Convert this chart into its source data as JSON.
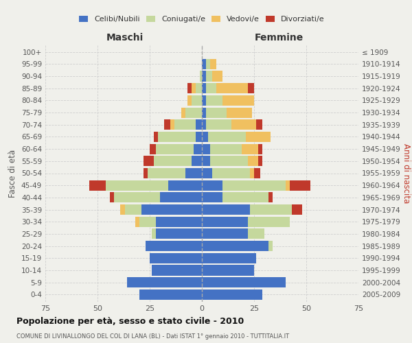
{
  "age_groups": [
    "0-4",
    "5-9",
    "10-14",
    "15-19",
    "20-24",
    "25-29",
    "30-34",
    "35-39",
    "40-44",
    "45-49",
    "50-54",
    "55-59",
    "60-64",
    "65-69",
    "70-74",
    "75-79",
    "80-84",
    "85-89",
    "90-94",
    "95-99",
    "100+"
  ],
  "birth_years": [
    "2005-2009",
    "2000-2004",
    "1995-1999",
    "1990-1994",
    "1985-1989",
    "1980-1984",
    "1975-1979",
    "1970-1974",
    "1965-1969",
    "1960-1964",
    "1955-1959",
    "1950-1954",
    "1945-1949",
    "1940-1944",
    "1935-1939",
    "1930-1934",
    "1925-1929",
    "1920-1924",
    "1915-1919",
    "1910-1914",
    "≤ 1909"
  ],
  "males": {
    "celibi": [
      30,
      36,
      24,
      25,
      27,
      22,
      22,
      29,
      20,
      16,
      8,
      5,
      4,
      3,
      3,
      0,
      0,
      0,
      0,
      0,
      0
    ],
    "coniugati": [
      0,
      0,
      0,
      0,
      0,
      2,
      8,
      8,
      22,
      30,
      18,
      18,
      18,
      18,
      10,
      8,
      5,
      3,
      1,
      0,
      0
    ],
    "vedovi": [
      0,
      0,
      0,
      0,
      0,
      0,
      2,
      2,
      0,
      0,
      0,
      0,
      0,
      0,
      2,
      2,
      2,
      2,
      0,
      0,
      0
    ],
    "divorziati": [
      0,
      0,
      0,
      0,
      0,
      0,
      0,
      0,
      2,
      8,
      2,
      5,
      3,
      2,
      3,
      0,
      0,
      2,
      0,
      0,
      0
    ]
  },
  "females": {
    "nubili": [
      29,
      40,
      25,
      26,
      32,
      22,
      22,
      23,
      10,
      10,
      5,
      4,
      4,
      3,
      2,
      2,
      2,
      2,
      2,
      2,
      0
    ],
    "coniugate": [
      0,
      0,
      0,
      0,
      2,
      8,
      20,
      20,
      22,
      30,
      18,
      18,
      15,
      18,
      12,
      10,
      8,
      5,
      3,
      2,
      0
    ],
    "vedove": [
      0,
      0,
      0,
      0,
      0,
      0,
      0,
      0,
      0,
      2,
      2,
      5,
      8,
      12,
      12,
      12,
      15,
      15,
      5,
      3,
      0
    ],
    "divorziate": [
      0,
      0,
      0,
      0,
      0,
      0,
      0,
      5,
      2,
      10,
      3,
      2,
      2,
      0,
      3,
      0,
      0,
      3,
      0,
      0,
      0
    ]
  },
  "colors": {
    "celibi": "#4472c4",
    "coniugati": "#c5d89d",
    "vedovi": "#f0c060",
    "divorziati": "#c0392b"
  },
  "title": "Popolazione per età, sesso e stato civile - 2010",
  "subtitle": "COMUNE DI LIVINALLONGO DEL COL DI LANA (BL) - Dati ISTAT 1° gennaio 2010 - TUTTITALIA.IT",
  "xlabel_left": "Maschi",
  "xlabel_right": "Femmine",
  "ylabel_left": "Fasce di età",
  "ylabel_right": "Anni di nascita",
  "xlim": 75,
  "background_color": "#f0f0eb",
  "grid_color": "#cccccc"
}
